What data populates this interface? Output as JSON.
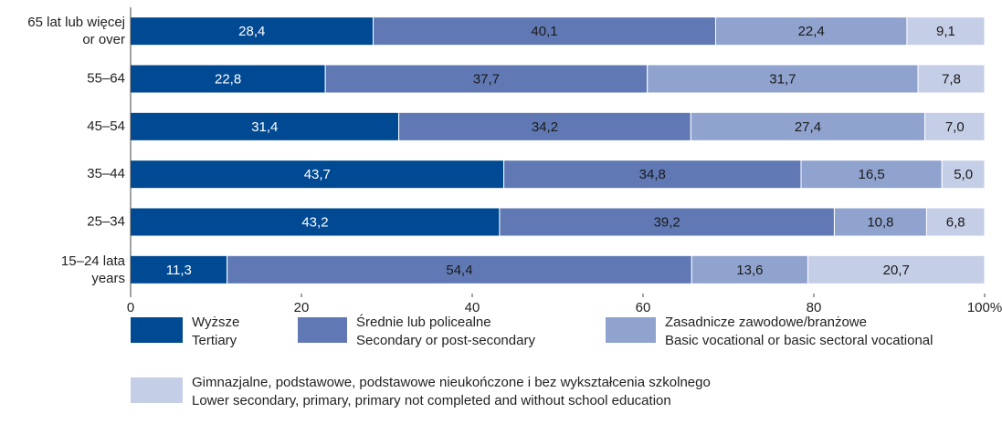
{
  "chart_data": {
    "type": "stacked-bar-horizontal",
    "categories": [
      [
        "65 lat lub więcej",
        "or over"
      ],
      [
        "55–64"
      ],
      [
        "45–54"
      ],
      [
        "35–44"
      ],
      [
        "25–34"
      ],
      [
        "15–24 lata",
        "years"
      ]
    ],
    "series": [
      {
        "name": [
          "Wyższe",
          "Tertiary"
        ],
        "color": "#004a93",
        "label_color": "#ffffff",
        "values": [
          28.4,
          22.8,
          31.4,
          43.7,
          43.2,
          11.3
        ],
        "value_labels": [
          "28,4",
          "22,8",
          "31,4",
          "43,7",
          "43,2",
          "11,3"
        ]
      },
      {
        "name": [
          "Średnie lub policealne",
          "Secondary or post-secondary"
        ],
        "color": "#6079b4",
        "label_color": "#1a1a1a",
        "values": [
          40.1,
          37.7,
          34.2,
          34.8,
          39.2,
          54.4
        ],
        "value_labels": [
          "40,1",
          "37,7",
          "34,2",
          "34,8",
          "39,2",
          "54,4"
        ]
      },
      {
        "name": [
          "Zasadnicze zawodowe/branżowe",
          "Basic vocational or basic sectoral vocational"
        ],
        "color": "#90a3cf",
        "label_color": "#1a1a1a",
        "values": [
          22.4,
          31.7,
          27.4,
          16.5,
          10.8,
          13.6
        ],
        "value_labels": [
          "22,4",
          "31,7",
          "27,4",
          "16,5",
          "10,8",
          "13,6"
        ]
      },
      {
        "name": [
          "Gimnazjalne, podstawowe, podstawowe nieukończone i bez wykształcenia szkolnego",
          "Lower secondary, primary, primary not completed and without school education"
        ],
        "color": "#c5cee7",
        "label_color": "#1a1a1a",
        "values": [
          9.1,
          7.8,
          7.0,
          5.0,
          6.8,
          20.7
        ],
        "value_labels": [
          "9,1",
          "7,8",
          "7,0",
          "5,0",
          "6,8",
          "20,7"
        ]
      }
    ],
    "xlim": [
      0,
      100
    ],
    "xticks": [
      0,
      20,
      40,
      60,
      80,
      {
        "value": 100,
        "label": "100%"
      }
    ]
  }
}
